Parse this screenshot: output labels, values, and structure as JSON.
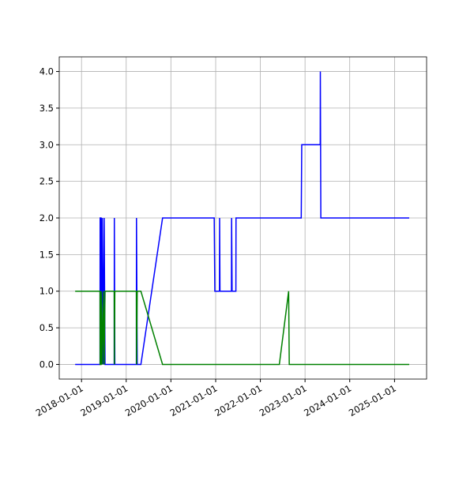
{
  "chart_data": {
    "type": "line",
    "x": [
      "2017-11-10",
      "2018-06-01",
      "2018-06-02",
      "2018-06-10",
      "2018-06-11",
      "2018-06-20",
      "2018-06-28",
      "2018-07-05",
      "2018-07-12",
      "2018-09-25",
      "2018-09-26",
      "2018-09-30",
      "2019-03-25",
      "2019-03-26",
      "2019-04-01",
      "2019-05-01",
      "2019-10-25",
      "2020-12-20",
      "2020-12-25",
      "2021-02-01",
      "2021-02-02",
      "2021-02-05",
      "2021-05-10",
      "2021-05-11",
      "2021-05-15",
      "2021-06-15",
      "2021-06-16",
      "2022-06-05",
      "2022-08-20",
      "2022-08-25",
      "2022-12-01",
      "2022-12-05",
      "2023-05-05",
      "2023-05-06",
      "2023-05-10",
      "2025-05-01"
    ],
    "series": [
      {
        "color": "#0000ff",
        "values": [
          0,
          0,
          2,
          2,
          0,
          2,
          0,
          2,
          0,
          0,
          2,
          0,
          0,
          2,
          0,
          0,
          2,
          2,
          1,
          1,
          2,
          1,
          1,
          2,
          1,
          1,
          2,
          2,
          2,
          2,
          2,
          3,
          3,
          4,
          2,
          2
        ]
      },
      {
        "color": "#008000",
        "values": [
          1,
          1,
          0,
          0,
          1,
          0,
          1,
          0,
          1,
          1,
          0,
          1,
          1,
          0,
          1,
          1,
          0,
          0,
          0,
          0,
          0,
          0,
          0,
          0,
          0,
          0,
          0,
          0,
          1,
          0,
          0,
          0,
          0,
          0,
          0,
          0
        ]
      }
    ],
    "xlim": [
      "2017-07-03",
      "2025-09-20"
    ],
    "xticks": [
      "2018-01-01",
      "2019-01-01",
      "2020-01-01",
      "2021-01-01",
      "2022-01-01",
      "2023-01-01",
      "2024-01-01",
      "2025-01-01"
    ],
    "ylim": [
      -0.2,
      4.2
    ],
    "yticks": [
      {
        "value": 0,
        "label": "0.0"
      },
      {
        "value": 0.5,
        "label": "0.5"
      },
      {
        "value": 1,
        "label": "1.0"
      },
      {
        "value": 1.5,
        "label": "1.5"
      },
      {
        "value": 2,
        "label": "2.0"
      },
      {
        "value": 2.5,
        "label": "2.5"
      },
      {
        "value": 3,
        "label": "3.0"
      },
      {
        "value": 3.5,
        "label": "3.5"
      },
      {
        "value": 4,
        "label": "4.0"
      }
    ],
    "grid": true
  }
}
